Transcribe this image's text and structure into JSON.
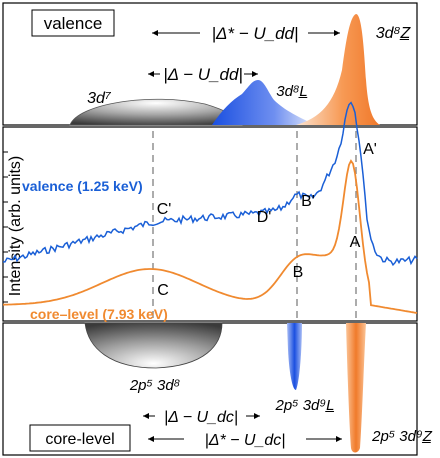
{
  "top_panel": {
    "box_label": "valence",
    "arrow_long": "|Δ* − U_dd|",
    "arrow_short": "|Δ − U_dd|",
    "state_d7": "3d⁷",
    "state_d8L": "3d⁸L̲",
    "state_d8Z": "3d⁸Z̲"
  },
  "bottom_panel": {
    "box_label": "core-level",
    "arrow_long": "|Δ* − U_dc|",
    "arrow_short": "|Δ − U_dc|",
    "state_2p5d8": "2p⁵ 3d⁸",
    "state_2p5d9L": "2p⁵ 3d⁹L̲",
    "state_2p5d9Z": "2p⁵ 3d⁹Z̲"
  },
  "chart_data": {
    "type": "line",
    "ylabel": "Intensity (arb. units)",
    "series": [
      {
        "name": "valence (1.25 keV)",
        "color": "#1a5fd6"
      },
      {
        "name": "core–level (7.93 keV)",
        "color": "#f08a30"
      }
    ],
    "peak_labels": {
      "valence": [
        "C'",
        "D'",
        "B'",
        "A'"
      ],
      "core": [
        "C",
        "B",
        "A"
      ]
    }
  },
  "colors": {
    "blue": "#1a5fd6",
    "orange": "#f08a30",
    "grey": "#8a8a8a",
    "dashed": "#888888"
  }
}
